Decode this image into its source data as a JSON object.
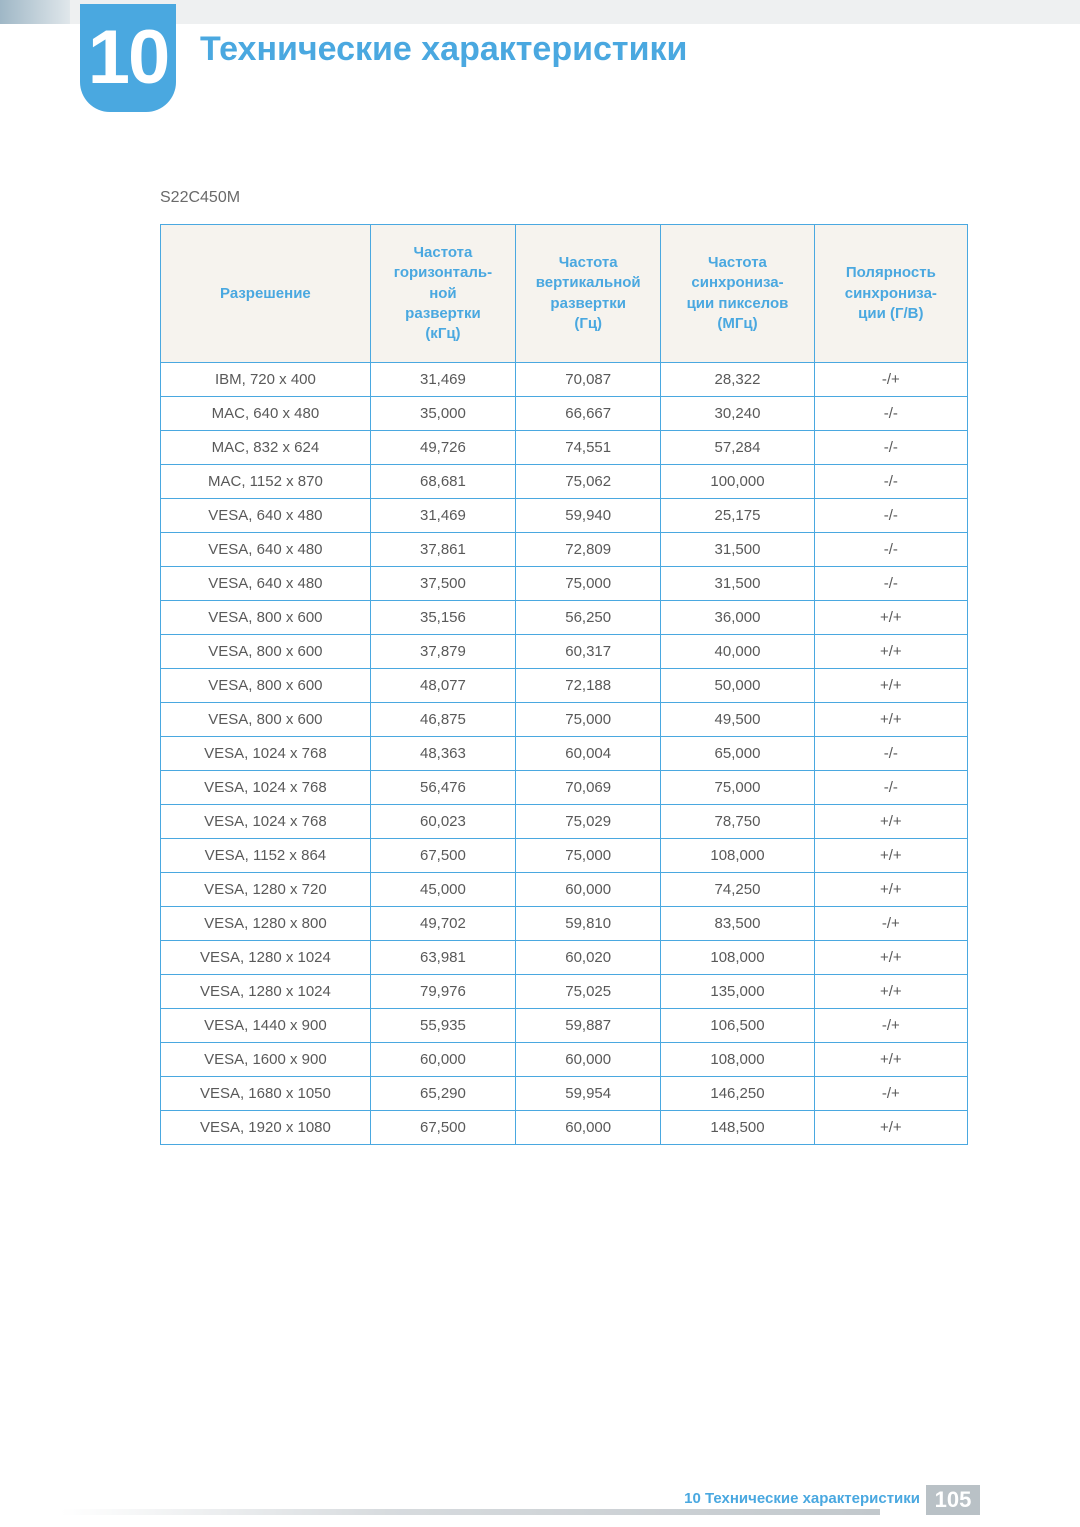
{
  "header": {
    "chapter_number": "10",
    "title": "Технические характеристики",
    "accent_color": "#4aa8e0",
    "header_bg": "#eef0f1"
  },
  "model": "S22C450M",
  "table": {
    "type": "table",
    "border_color": "#4aa8e0",
    "header_bg": "#f6f3ee",
    "header_color": "#4aa8e0",
    "cell_color": "#595959",
    "columns": [
      "Разрешение",
      "Частота горизонталь­ной развертки (кГц)",
      "Частота вертикальной развертки (Гц)",
      "Частота синхрониза­ции пикселов (МГц)",
      "Полярность синхрониза­ции (Г/В)"
    ],
    "col_widths_pct": [
      26,
      18,
      18,
      19,
      19
    ],
    "rows": [
      [
        "IBM, 720 x 400",
        "31,469",
        "70,087",
        "28,322",
        "-/+"
      ],
      [
        "MAC, 640 x 480",
        "35,000",
        "66,667",
        "30,240",
        "-/-"
      ],
      [
        "MAC, 832 x 624",
        "49,726",
        "74,551",
        "57,284",
        "-/-"
      ],
      [
        "MAC, 1152 x 870",
        "68,681",
        "75,062",
        "100,000",
        "-/-"
      ],
      [
        "VESA, 640 x 480",
        "31,469",
        "59,940",
        "25,175",
        "-/-"
      ],
      [
        "VESA, 640 x 480",
        "37,861",
        "72,809",
        "31,500",
        "-/-"
      ],
      [
        "VESA, 640 x 480",
        "37,500",
        "75,000",
        "31,500",
        "-/-"
      ],
      [
        "VESA, 800 x 600",
        "35,156",
        "56,250",
        "36,000",
        "+/+"
      ],
      [
        "VESA, 800 x 600",
        "37,879",
        "60,317",
        "40,000",
        "+/+"
      ],
      [
        "VESA, 800 x 600",
        "48,077",
        "72,188",
        "50,000",
        "+/+"
      ],
      [
        "VESA, 800 x 600",
        "46,875",
        "75,000",
        "49,500",
        "+/+"
      ],
      [
        "VESA, 1024 x 768",
        "48,363",
        "60,004",
        "65,000",
        "-/-"
      ],
      [
        "VESA, 1024 x 768",
        "56,476",
        "70,069",
        "75,000",
        "-/-"
      ],
      [
        "VESA, 1024 x 768",
        "60,023",
        "75,029",
        "78,750",
        "+/+"
      ],
      [
        "VESA, 1152 x 864",
        "67,500",
        "75,000",
        "108,000",
        "+/+"
      ],
      [
        "VESA, 1280 x 720",
        "45,000",
        "60,000",
        "74,250",
        "+/+"
      ],
      [
        "VESA, 1280 x 800",
        "49,702",
        "59,810",
        "83,500",
        "-/+"
      ],
      [
        "VESA, 1280 x 1024",
        "63,981",
        "60,020",
        "108,000",
        "+/+"
      ],
      [
        "VESA, 1280 x 1024",
        "79,976",
        "75,025",
        "135,000",
        "+/+"
      ],
      [
        "VESA, 1440 x 900",
        "55,935",
        "59,887",
        "106,500",
        "-/+"
      ],
      [
        "VESA, 1600 x 900",
        "60,000",
        "60,000",
        "108,000",
        "+/+"
      ],
      [
        "VESA, 1680 x 1050",
        "65,290",
        "59,954",
        "146,250",
        "-/+"
      ],
      [
        "VESA, 1920 x 1080",
        "67,500",
        "60,000",
        "148,500",
        "+/+"
      ]
    ]
  },
  "footer": {
    "text": "10 Технические характеристики",
    "page_number": "105",
    "pagenum_bg": "#b9c1c6"
  }
}
